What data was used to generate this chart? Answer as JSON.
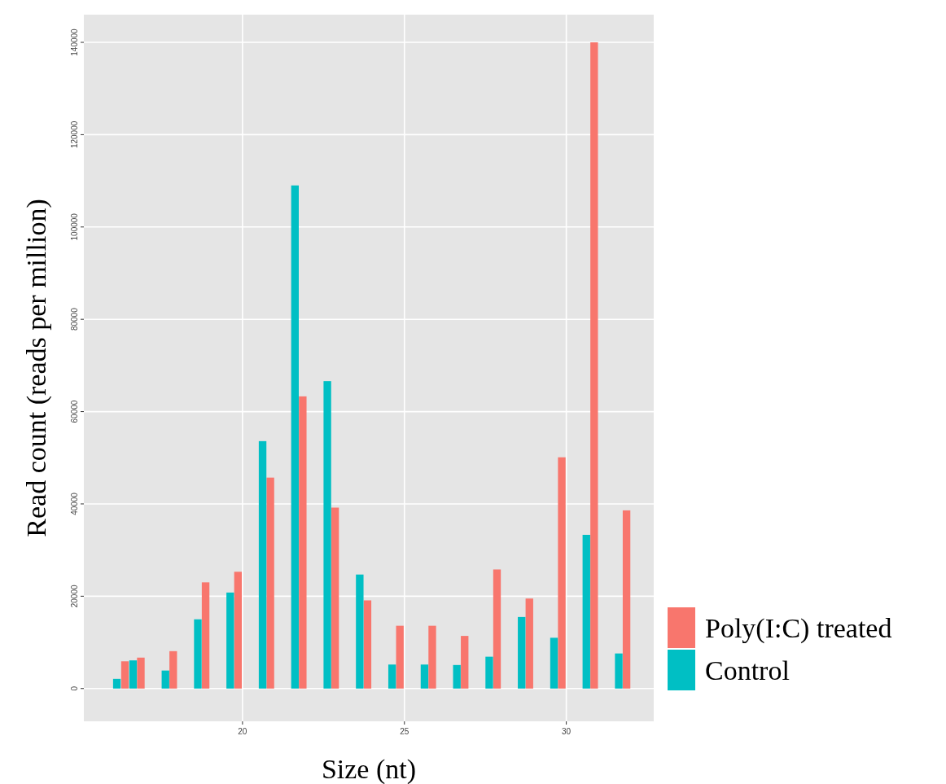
{
  "chart_data": {
    "type": "bar",
    "xlabel": "Size (nt)",
    "ylabel": "Read count (reads per million)",
    "xlim": [
      15.1,
      32.7
    ],
    "xticks": [
      20,
      25,
      30
    ],
    "ylim": [
      -7100,
      146000
    ],
    "yticks": [
      0,
      20000,
      40000,
      60000,
      80000,
      100000,
      120000,
      140000
    ],
    "grid": true,
    "legend": "right",
    "series": [
      {
        "name": "Poly(I:C) treated",
        "color": "#f8766d",
        "x": [
          16.37,
          16.86,
          17.86,
          18.86,
          19.86,
          20.86,
          21.86,
          22.86,
          23.86,
          24.86,
          25.86,
          26.86,
          27.86,
          28.86,
          29.86,
          30.86,
          31.86
        ],
        "values": [
          5900,
          6700,
          8100,
          23000,
          25300,
          45700,
          63300,
          39200,
          19100,
          13600,
          13600,
          11400,
          25800,
          19500,
          50100,
          140000,
          38600
        ]
      },
      {
        "name": "Control",
        "color": "#00bfc4",
        "x": [
          16.12,
          16.62,
          17.62,
          18.62,
          19.62,
          20.62,
          21.62,
          22.62,
          23.62,
          24.62,
          25.62,
          26.62,
          27.62,
          28.62,
          29.62,
          30.62,
          31.62
        ],
        "values": [
          2100,
          6100,
          3900,
          15000,
          20800,
          53600,
          109000,
          66600,
          24700,
          5200,
          5200,
          5100,
          6900,
          15500,
          11000,
          33300,
          7600
        ]
      }
    ]
  }
}
